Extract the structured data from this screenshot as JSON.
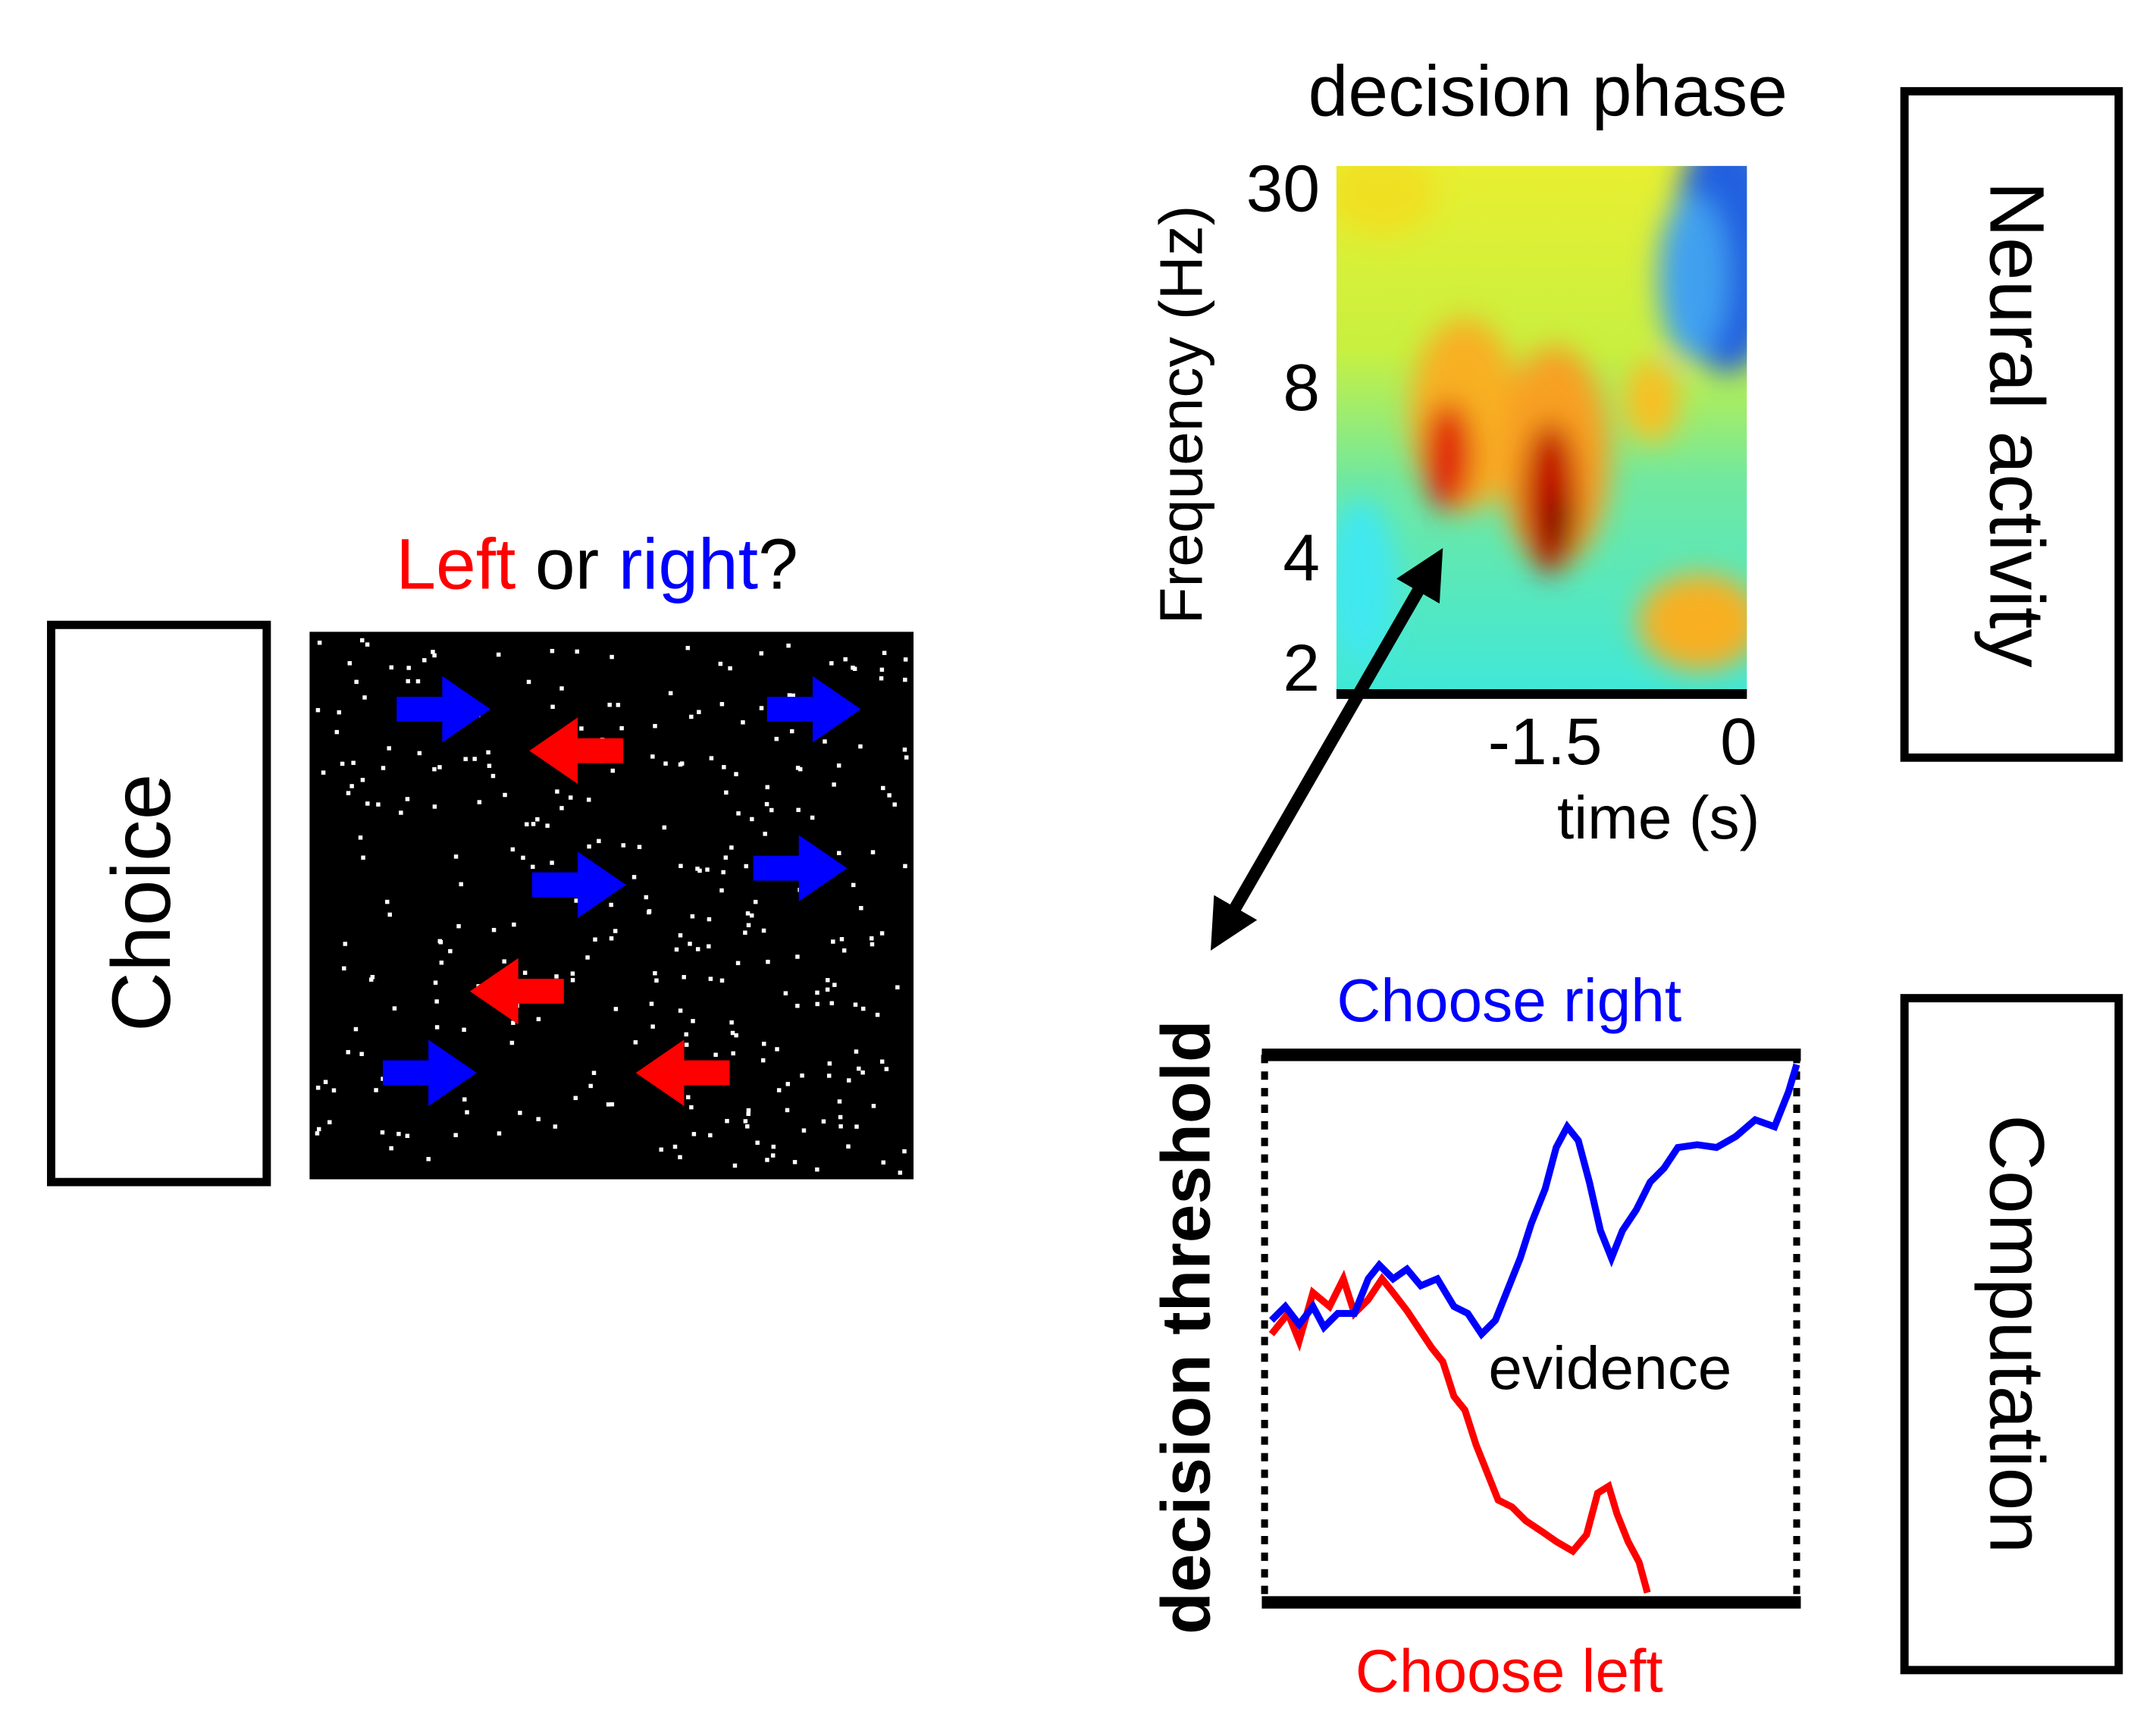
{
  "choice_panel": {
    "label": "Choice",
    "question": {
      "left": "Left",
      "or": "or",
      "right": "right",
      "end": "?"
    }
  },
  "neural_panel": {
    "label": "Neural activity",
    "title": "decision phase",
    "y_axis_label": "Frequency (Hz)",
    "y_ticks": [
      "30",
      "8",
      "4",
      "2"
    ],
    "x_ticks": [
      "-1.5",
      "0"
    ],
    "x_axis_label": "time (s)"
  },
  "computation_panel": {
    "label": "Computation",
    "side_label": "decision threshold",
    "top_label": "Choose right",
    "bottom_label": "Choose left",
    "middle_label": "evidence"
  }
}
